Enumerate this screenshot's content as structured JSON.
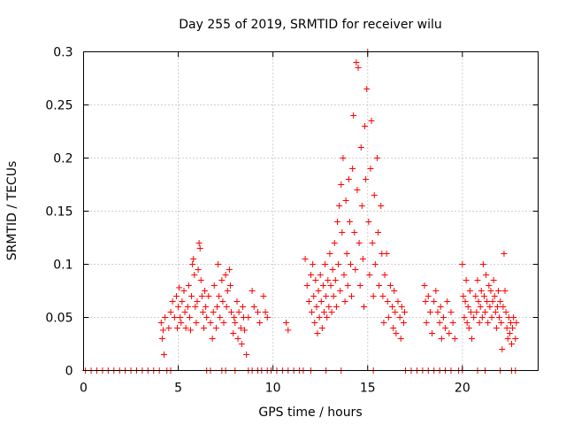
{
  "chart_data": {
    "type": "scatter",
    "title": "Day 255 of 2019, SRMTID for receiver wilu",
    "xlabel": "GPS time / hours",
    "ylabel": "SRMTID / TECUs",
    "xlim": [
      0,
      24
    ],
    "ylim": [
      0,
      0.3
    ],
    "xticks": [
      0,
      5,
      10,
      15,
      20
    ],
    "xtick_labels": [
      "0",
      "5",
      "10",
      "15",
      "20"
    ],
    "yticks": [
      0,
      0.05,
      0.1,
      0.15,
      0.2,
      0.25,
      0.3
    ],
    "ytick_labels": [
      "0",
      "0.05",
      "0.1",
      "0.15",
      "0.2",
      "0.25",
      "0.3"
    ],
    "grid": true,
    "marker": "+",
    "color": "#ff0000",
    "series": [
      {
        "name": "SRMTID",
        "points": [
          [
            0.1,
            0
          ],
          [
            0.4,
            0
          ],
          [
            0.7,
            0
          ],
          [
            1.0,
            0
          ],
          [
            1.3,
            0
          ],
          [
            1.6,
            0
          ],
          [
            1.9,
            0
          ],
          [
            2.2,
            0
          ],
          [
            2.5,
            0
          ],
          [
            2.8,
            0
          ],
          [
            3.1,
            0
          ],
          [
            3.4,
            0
          ],
          [
            3.7,
            0
          ],
          [
            4.0,
            0
          ],
          [
            4.4,
            0
          ],
          [
            4.6,
            0
          ],
          [
            6.5,
            0
          ],
          [
            6.7,
            0
          ],
          [
            7.3,
            0
          ],
          [
            7.5,
            0
          ],
          [
            8.0,
            0
          ],
          [
            8.7,
            0
          ],
          [
            8.9,
            0
          ],
          [
            9.2,
            0
          ],
          [
            9.4,
            0
          ],
          [
            9.7,
            0
          ],
          [
            9.9,
            0
          ],
          [
            10.2,
            0
          ],
          [
            10.5,
            0
          ],
          [
            10.8,
            0
          ],
          [
            11.1,
            0
          ],
          [
            11.4,
            0
          ],
          [
            11.6,
            0
          ],
          [
            12.0,
            0
          ],
          [
            12.8,
            0
          ],
          [
            13.6,
            0
          ],
          [
            15.3,
            0
          ],
          [
            17.0,
            0
          ],
          [
            17.3,
            0
          ],
          [
            17.6,
            0
          ],
          [
            17.9,
            0
          ],
          [
            18.2,
            0
          ],
          [
            18.5,
            0
          ],
          [
            18.8,
            0
          ],
          [
            19.1,
            0
          ],
          [
            19.4,
            0
          ],
          [
            19.8,
            0
          ],
          [
            20.0,
            0
          ],
          [
            20.8,
            0
          ],
          [
            21.2,
            0
          ],
          [
            22.0,
            0
          ],
          [
            22.6,
            0
          ],
          [
            22.8,
            0
          ],
          [
            4.1,
            0.045
          ],
          [
            4.15,
            0.03
          ],
          [
            4.2,
            0.038
          ],
          [
            4.25,
            0.015
          ],
          [
            4.3,
            0.05
          ],
          [
            4.5,
            0.04
          ],
          [
            4.6,
            0.055
          ],
          [
            4.7,
            0.065
          ],
          [
            4.8,
            0.05
          ],
          [
            4.9,
            0.07
          ],
          [
            4.95,
            0.04
          ],
          [
            5.0,
            0.06
          ],
          [
            5.05,
            0.078
          ],
          [
            5.1,
            0.05
          ],
          [
            5.15,
            0.045
          ],
          [
            5.2,
            0.065
          ],
          [
            5.3,
            0.075
          ],
          [
            5.35,
            0.055
          ],
          [
            5.4,
            0.04
          ],
          [
            5.5,
            0.06
          ],
          [
            5.55,
            0.08
          ],
          [
            5.6,
            0.05
          ],
          [
            5.65,
            0.038
          ],
          [
            5.7,
            0.07
          ],
          [
            5.75,
            0.1
          ],
          [
            5.8,
            0.105
          ],
          [
            5.85,
            0.09
          ],
          [
            5.9,
            0.06
          ],
          [
            5.95,
            0.045
          ],
          [
            6.0,
            0.065
          ],
          [
            6.05,
            0.095
          ],
          [
            6.1,
            0.12
          ],
          [
            6.15,
            0.115
          ],
          [
            6.2,
            0.085
          ],
          [
            6.25,
            0.07
          ],
          [
            6.3,
            0.055
          ],
          [
            6.35,
            0.04
          ],
          [
            6.4,
            0.075
          ],
          [
            6.45,
            0.06
          ],
          [
            6.5,
            0.05
          ],
          [
            6.6,
            0.07
          ],
          [
            6.7,
            0.045
          ],
          [
            6.8,
            0.03
          ],
          [
            6.85,
            0.055
          ],
          [
            6.9,
            0.08
          ],
          [
            7.0,
            0.04
          ],
          [
            7.05,
            0.06
          ],
          [
            7.1,
            0.1
          ],
          [
            7.15,
            0.07
          ],
          [
            7.2,
            0.05
          ],
          [
            7.3,
            0.085
          ],
          [
            7.35,
            0.065
          ],
          [
            7.4,
            0.045
          ],
          [
            7.5,
            0.09
          ],
          [
            7.55,
            0.06
          ],
          [
            7.6,
            0.075
          ],
          [
            7.7,
            0.095
          ],
          [
            7.75,
            0.08
          ],
          [
            7.8,
            0.055
          ],
          [
            7.9,
            0.035
          ],
          [
            7.95,
            0.05
          ],
          [
            8.0,
            0.045
          ],
          [
            8.1,
            0.065
          ],
          [
            8.15,
            0.03
          ],
          [
            8.2,
            0.055
          ],
          [
            8.3,
            0.04
          ],
          [
            8.35,
            0.025
          ],
          [
            8.4,
            0.06
          ],
          [
            8.45,
            0.05
          ],
          [
            8.5,
            0.038
          ],
          [
            8.6,
            0.015
          ],
          [
            8.7,
            0.05
          ],
          [
            8.9,
            0.075
          ],
          [
            9.0,
            0.06
          ],
          [
            9.2,
            0.055
          ],
          [
            9.3,
            0.045
          ],
          [
            9.5,
            0.07
          ],
          [
            9.6,
            0.055
          ],
          [
            9.7,
            0.05
          ],
          [
            10.7,
            0.045
          ],
          [
            10.8,
            0.038
          ],
          [
            11.7,
            0.105
          ],
          [
            11.8,
            0.08
          ],
          [
            11.9,
            0.065
          ],
          [
            12.0,
            0.09
          ],
          [
            12.05,
            0.055
          ],
          [
            12.1,
            0.1
          ],
          [
            12.15,
            0.07
          ],
          [
            12.2,
            0.045
          ],
          [
            12.25,
            0.085
          ],
          [
            12.3,
            0.06
          ],
          [
            12.35,
            0.035
          ],
          [
            12.4,
            0.075
          ],
          [
            12.45,
            0.05
          ],
          [
            12.5,
            0.09
          ],
          [
            12.55,
            0.065
          ],
          [
            12.6,
            0.04
          ],
          [
            12.65,
            0.08
          ],
          [
            12.7,
            0.055
          ],
          [
            12.75,
            0.1
          ],
          [
            12.8,
            0.07
          ],
          [
            12.85,
            0.05
          ],
          [
            12.9,
            0.085
          ],
          [
            12.95,
            0.06
          ],
          [
            13.0,
            0.11
          ],
          [
            13.05,
            0.08
          ],
          [
            13.1,
            0.055
          ],
          [
            13.15,
            0.095
          ],
          [
            13.2,
            0.07
          ],
          [
            13.25,
            0.12
          ],
          [
            13.3,
            0.085
          ],
          [
            13.35,
            0.06
          ],
          [
            13.4,
            0.14
          ],
          [
            13.45,
            0.1
          ],
          [
            13.5,
            0.155
          ],
          [
            13.55,
            0.075
          ],
          [
            13.6,
            0.175
          ],
          [
            13.65,
            0.13
          ],
          [
            13.7,
            0.2
          ],
          [
            13.75,
            0.09
          ],
          [
            13.8,
            0.065
          ],
          [
            13.85,
            0.16
          ],
          [
            13.9,
            0.11
          ],
          [
            13.95,
            0.08
          ],
          [
            14.0,
            0.18
          ],
          [
            14.05,
            0.14
          ],
          [
            14.1,
            0.1
          ],
          [
            14.15,
            0.07
          ],
          [
            14.2,
            0.19
          ],
          [
            14.25,
            0.24
          ],
          [
            14.3,
            0.13
          ],
          [
            14.35,
            0.095
          ],
          [
            14.4,
            0.29
          ],
          [
            14.45,
            0.17
          ],
          [
            14.5,
            0.285
          ],
          [
            14.55,
            0.12
          ],
          [
            14.6,
            0.08
          ],
          [
            14.65,
            0.21
          ],
          [
            14.7,
            0.155
          ],
          [
            14.75,
            0.105
          ],
          [
            14.8,
            0.06
          ],
          [
            14.85,
            0.23
          ],
          [
            14.9,
            0.18
          ],
          [
            14.95,
            0.265
          ],
          [
            15.0,
            0.3
          ],
          [
            15.05,
            0.14
          ],
          [
            15.1,
            0.09
          ],
          [
            15.15,
            0.19
          ],
          [
            15.2,
            0.235
          ],
          [
            15.25,
            0.12
          ],
          [
            15.3,
            0.07
          ],
          [
            15.35,
            0.165
          ],
          [
            15.4,
            0.1
          ],
          [
            15.5,
            0.2
          ],
          [
            15.55,
            0.13
          ],
          [
            15.6,
            0.08
          ],
          [
            15.7,
            0.155
          ],
          [
            15.75,
            0.11
          ],
          [
            15.8,
            0.07
          ],
          [
            15.85,
            0.045
          ],
          [
            15.9,
            0.09
          ],
          [
            16.0,
            0.11
          ],
          [
            16.05,
            0.065
          ],
          [
            16.1,
            0.05
          ],
          [
            16.2,
            0.08
          ],
          [
            16.3,
            0.06
          ],
          [
            16.35,
            0.04
          ],
          [
            16.4,
            0.075
          ],
          [
            16.45,
            0.055
          ],
          [
            16.5,
            0.035
          ],
          [
            16.6,
            0.065
          ],
          [
            16.7,
            0.05
          ],
          [
            16.75,
            0.03
          ],
          [
            16.8,
            0.06
          ],
          [
            16.9,
            0.045
          ],
          [
            16.95,
            0.055
          ],
          [
            18.0,
            0.08
          ],
          [
            18.05,
            0.065
          ],
          [
            18.1,
            0.045
          ],
          [
            18.2,
            0.07
          ],
          [
            18.3,
            0.055
          ],
          [
            18.4,
            0.035
          ],
          [
            18.5,
            0.065
          ],
          [
            18.6,
            0.075
          ],
          [
            18.7,
            0.055
          ],
          [
            18.8,
            0.045
          ],
          [
            18.85,
            0.06
          ],
          [
            18.9,
            0.03
          ],
          [
            19.0,
            0.05
          ],
          [
            19.1,
            0.04
          ],
          [
            19.2,
            0.065
          ],
          [
            19.3,
            0.035
          ],
          [
            19.4,
            0.055
          ],
          [
            19.5,
            0.045
          ],
          [
            19.6,
            0.03
          ],
          [
            20.0,
            0.1
          ],
          [
            20.05,
            0.07
          ],
          [
            20.1,
            0.05
          ],
          [
            20.15,
            0.065
          ],
          [
            20.2,
            0.085
          ],
          [
            20.25,
            0.045
          ],
          [
            20.3,
            0.06
          ],
          [
            20.35,
            0.04
          ],
          [
            20.4,
            0.075
          ],
          [
            20.45,
            0.055
          ],
          [
            20.5,
            0.03
          ],
          [
            20.6,
            0.05
          ],
          [
            20.7,
            0.07
          ],
          [
            20.75,
            0.055
          ],
          [
            20.8,
            0.085
          ],
          [
            20.85,
            0.065
          ],
          [
            20.9,
            0.045
          ],
          [
            20.95,
            0.06
          ],
          [
            21.0,
            0.075
          ],
          [
            21.05,
            0.05
          ],
          [
            21.1,
            0.1
          ],
          [
            21.15,
            0.07
          ],
          [
            21.2,
            0.055
          ],
          [
            21.25,
            0.09
          ],
          [
            21.3,
            0.065
          ],
          [
            21.35,
            0.045
          ],
          [
            21.4,
            0.08
          ],
          [
            21.45,
            0.06
          ],
          [
            21.5,
            0.075
          ],
          [
            21.55,
            0.05
          ],
          [
            21.6,
            0.065
          ],
          [
            21.65,
            0.085
          ],
          [
            21.7,
            0.07
          ],
          [
            21.75,
            0.055
          ],
          [
            21.8,
            0.04
          ],
          [
            21.85,
            0.06
          ],
          [
            21.9,
            0.075
          ],
          [
            21.95,
            0.05
          ],
          [
            22.0,
            0.065
          ],
          [
            22.05,
            0.045
          ],
          [
            22.1,
            0.02
          ],
          [
            22.15,
            0.06
          ],
          [
            22.2,
            0.11
          ],
          [
            22.25,
            0.075
          ],
          [
            22.3,
            0.055
          ],
          [
            22.35,
            0.04
          ],
          [
            22.4,
            0.03
          ],
          [
            22.45,
            0.05
          ],
          [
            22.5,
            0.035
          ],
          [
            22.55,
            0.045
          ],
          [
            22.6,
            0.025
          ],
          [
            22.65,
            0.04
          ],
          [
            22.7,
            0.05
          ],
          [
            22.8,
            0.03
          ],
          [
            22.85,
            0.045
          ]
        ]
      }
    ]
  }
}
